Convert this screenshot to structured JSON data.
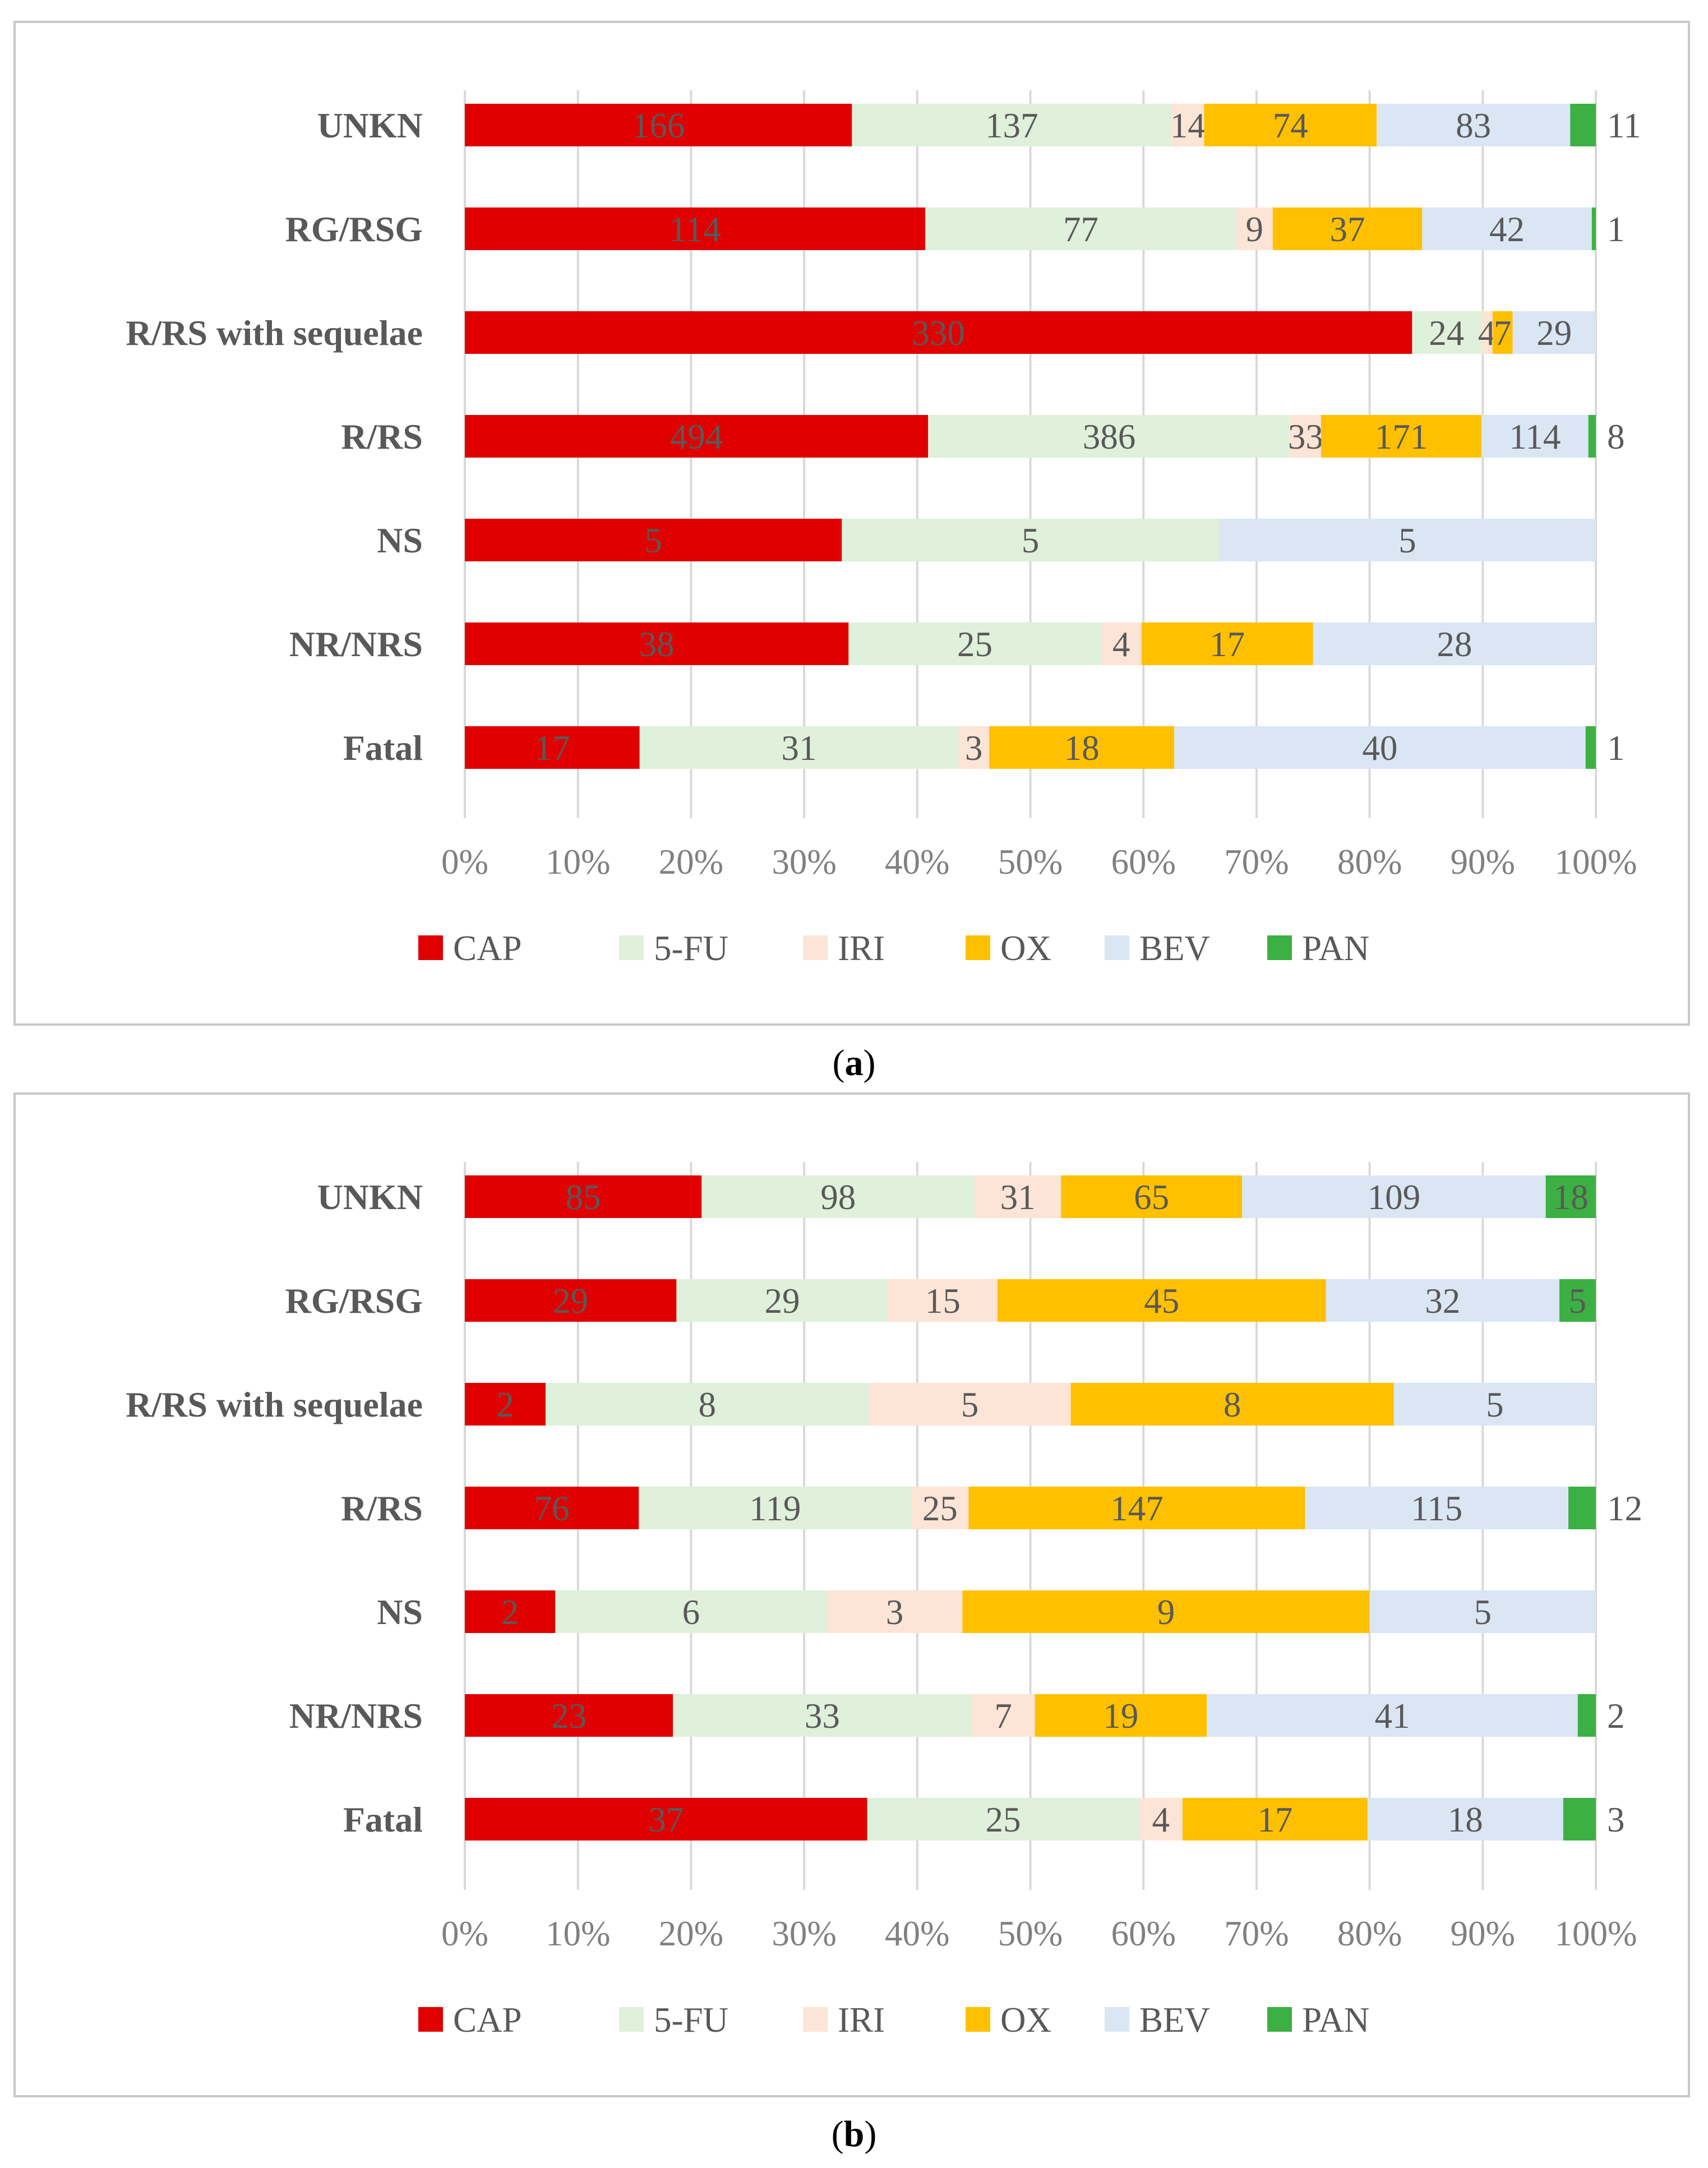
{
  "chart_data": [
    {
      "type": "bar",
      "orientation": "horizontal",
      "stacked": "percent",
      "panel_label": "a",
      "categories": [
        "UNKN",
        "RG/RSG",
        "R/RS with sequelae",
        "R/RS",
        "NS",
        "NR/NRS",
        "Fatal"
      ],
      "series": [
        {
          "name": "CAP",
          "color": "#e00000",
          "values": [
            166,
            114,
            330,
            494,
            5,
            38,
            17
          ]
        },
        {
          "name": "5-FU",
          "color": "#dff0db",
          "values": [
            137,
            77,
            24,
            386,
            5,
            25,
            31
          ]
        },
        {
          "name": "IRI",
          "color": "#fce4d6",
          "values": [
            14,
            9,
            4,
            33,
            0,
            4,
            3
          ]
        },
        {
          "name": "OX",
          "color": "#ffc000",
          "values": [
            74,
            37,
            7,
            171,
            0,
            17,
            18
          ]
        },
        {
          "name": "BEV",
          "color": "#dae6f4",
          "values": [
            83,
            42,
            29,
            114,
            5,
            28,
            40
          ]
        },
        {
          "name": "PAN",
          "color": "#3cb043",
          "values": [
            11,
            1,
            0,
            8,
            0,
            0,
            1
          ]
        }
      ],
      "x_ticks": [
        "0%",
        "10%",
        "20%",
        "30%",
        "40%",
        "50%",
        "60%",
        "70%",
        "80%",
        "90%",
        "100%"
      ],
      "xlim": [
        0,
        100
      ],
      "grid": "vertical",
      "legend_position": "bottom",
      "title": "",
      "xlabel": "",
      "ylabel": ""
    },
    {
      "type": "bar",
      "orientation": "horizontal",
      "stacked": "percent",
      "panel_label": "b",
      "categories": [
        "UNKN",
        "RG/RSG",
        "R/RS with sequelae",
        "R/RS",
        "NS",
        "NR/NRS",
        "Fatal"
      ],
      "series": [
        {
          "name": "CAP",
          "color": "#e00000",
          "values": [
            85,
            29,
            2,
            76,
            2,
            23,
            37
          ]
        },
        {
          "name": "5-FU",
          "color": "#dff0db",
          "values": [
            98,
            29,
            8,
            119,
            6,
            33,
            25
          ]
        },
        {
          "name": "IRI",
          "color": "#fce4d6",
          "values": [
            31,
            15,
            5,
            25,
            3,
            7,
            4
          ]
        },
        {
          "name": "OX",
          "color": "#ffc000",
          "values": [
            65,
            45,
            8,
            147,
            9,
            19,
            17
          ]
        },
        {
          "name": "BEV",
          "color": "#dae6f4",
          "values": [
            109,
            32,
            5,
            115,
            5,
            41,
            18
          ]
        },
        {
          "name": "PAN",
          "color": "#3cb043",
          "values": [
            18,
            5,
            0,
            12,
            0,
            2,
            3
          ]
        }
      ],
      "x_ticks": [
        "0%",
        "10%",
        "20%",
        "30%",
        "40%",
        "50%",
        "60%",
        "70%",
        "80%",
        "90%",
        "100%"
      ],
      "xlim": [
        0,
        100
      ],
      "grid": "vertical",
      "legend_position": "bottom",
      "title": "",
      "xlabel": "",
      "ylabel": ""
    }
  ],
  "captions": {
    "a": {
      "open": "(",
      "letter": "a",
      "close": ")"
    },
    "b": {
      "open": "(",
      "letter": "b",
      "close": ")"
    }
  },
  "colors": {
    "label_text": "#595959",
    "axis_text": "#808080",
    "gridline": "#d9d9d9"
  }
}
